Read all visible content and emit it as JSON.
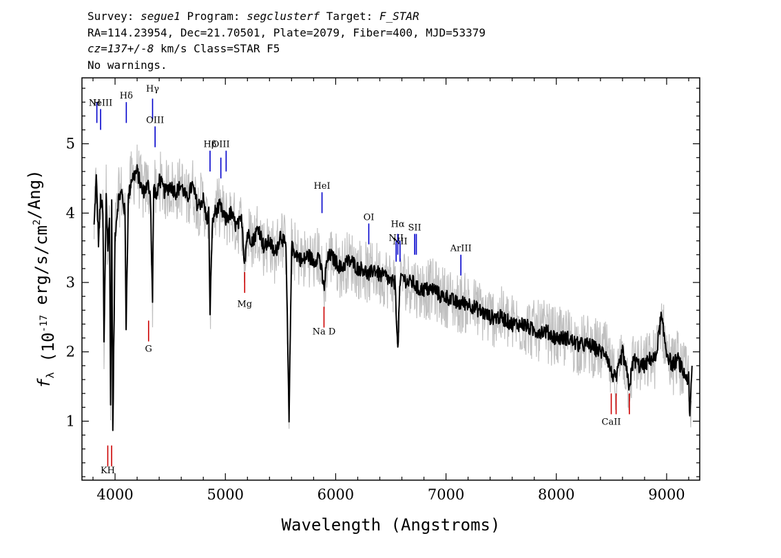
{
  "header": {
    "survey_label": "Survey: ",
    "survey": "segue1",
    "program_label": " Program: ",
    "program": "segclusterf",
    "target_label": " Target: ",
    "target": "F_STAR",
    "line2": "RA=114.23954, Dec=21.70501, Plate=2079, Fiber=400, MJD=53379",
    "cz": "cz=137+/-8",
    "cz_units": " km/s Class=STAR F5",
    "line4": "No warnings."
  },
  "chart_data": {
    "type": "line",
    "xlabel": "Wavelength (Angstroms)",
    "ylabel": "f_λ (10^-17 erg/s/cm^2/Ang)",
    "xlim": [
      3700,
      9300
    ],
    "ylim": [
      0.15,
      5.95
    ],
    "xticks": [
      4000,
      5000,
      6000,
      7000,
      8000,
      9000
    ],
    "yticks": [
      1,
      2,
      3,
      4,
      5
    ],
    "colors": {
      "flux": "#000000",
      "noise": "#c0c0c0",
      "emission": "#0000cc",
      "absorption": "#cc0000"
    },
    "series": [
      {
        "role": "flux",
        "x": [
          3810,
          3830,
          3850,
          3870,
          3890,
          3900,
          3920,
          3935,
          3950,
          3960,
          3970,
          3980,
          4000,
          4030,
          4060,
          4090,
          4100,
          4120,
          4150,
          4200,
          4250,
          4300,
          4320,
          4340,
          4350,
          4380,
          4400,
          4450,
          4500,
          4550,
          4600,
          4650,
          4700,
          4750,
          4800,
          4830,
          4850,
          4861,
          4880,
          4900,
          4950,
          5000,
          5050,
          5100,
          5150,
          5172,
          5200,
          5250,
          5300,
          5350,
          5400,
          5450,
          5500,
          5550,
          5577,
          5600,
          5650,
          5700,
          5750,
          5800,
          5850,
          5893,
          5920,
          5950,
          6000,
          6050,
          6100,
          6150,
          6200,
          6250,
          6300,
          6350,
          6400,
          6450,
          6500,
          6540,
          6563,
          6580,
          6600,
          6650,
          6700,
          6750,
          6800,
          6850,
          6900,
          6950,
          7000,
          7100,
          7200,
          7300,
          7400,
          7500,
          7600,
          7700,
          7800,
          7900,
          8000,
          8100,
          8200,
          8300,
          8400,
          8450,
          8498,
          8542,
          8600,
          8662,
          8700,
          8750,
          8800,
          8850,
          8900,
          8950,
          9000,
          9050,
          9100,
          9150,
          9200,
          9210,
          9230
        ],
        "y": [
          3.8,
          4.5,
          3.6,
          4.2,
          4.0,
          2.1,
          4.3,
          3.5,
          3.9,
          1.2,
          4.1,
          0.8,
          3.7,
          4.2,
          4.3,
          4.0,
          2.4,
          4.2,
          4.5,
          4.6,
          4.3,
          4.4,
          4.3,
          2.7,
          4.4,
          4.2,
          4.5,
          4.3,
          4.4,
          4.3,
          4.4,
          4.2,
          4.4,
          4.1,
          4.2,
          3.9,
          4.0,
          2.5,
          3.8,
          4.0,
          4.1,
          3.9,
          4.0,
          3.8,
          3.9,
          3.3,
          3.7,
          3.6,
          3.8,
          3.5,
          3.6,
          3.4,
          3.7,
          3.5,
          1.0,
          3.5,
          3.4,
          3.3,
          3.4,
          3.3,
          3.4,
          2.9,
          3.3,
          3.4,
          3.3,
          3.2,
          3.3,
          3.3,
          3.2,
          3.2,
          3.1,
          3.2,
          3.1,
          3.1,
          3.0,
          3.0,
          2.0,
          2.9,
          3.1,
          3.0,
          3.0,
          2.9,
          2.9,
          2.9,
          2.9,
          2.8,
          2.8,
          2.7,
          2.7,
          2.6,
          2.5,
          2.5,
          2.4,
          2.4,
          2.3,
          2.3,
          2.2,
          2.2,
          2.1,
          2.1,
          2.0,
          2.0,
          1.7,
          1.6,
          2.0,
          1.5,
          1.9,
          1.8,
          1.8,
          1.9,
          1.9,
          2.5,
          2.0,
          1.8,
          1.9,
          1.7,
          1.6,
          1.0,
          1.8
        ]
      }
    ],
    "lines": [
      {
        "label": "H",
        "wave": 3835,
        "kind": "emission",
        "y0": 5.3,
        "y1": 5.6,
        "ly": 5.55
      },
      {
        "label": "NeIII",
        "wave": 3869,
        "kind": "emission",
        "y0": 5.2,
        "y1": 5.5,
        "ly": 5.55
      },
      {
        "label": "Hδ",
        "wave": 4102,
        "kind": "emission",
        "y0": 5.3,
        "y1": 5.6,
        "ly": 5.65
      },
      {
        "label": "Hγ",
        "wave": 4340,
        "kind": "emission",
        "y0": 5.35,
        "y1": 5.65,
        "ly": 5.75
      },
      {
        "label": "OIII",
        "wave": 4363,
        "kind": "emission",
        "y0": 4.95,
        "y1": 5.25,
        "ly": 5.3
      },
      {
        "label": "Hβ",
        "wave": 4861,
        "kind": "emission",
        "y0": 4.6,
        "y1": 4.9,
        "ly": 4.95
      },
      {
        "label": "OIII",
        "wave": 4959,
        "kind": "emission",
        "y0": 4.5,
        "y1": 4.8,
        "ly": 4.95
      },
      {
        "label": "",
        "wave": 5007,
        "kind": "emission",
        "y0": 4.6,
        "y1": 4.9,
        "ly": 0
      },
      {
        "label": "HeI",
        "wave": 5876,
        "kind": "emission",
        "y0": 4.0,
        "y1": 4.3,
        "ly": 4.35
      },
      {
        "label": "OI",
        "wave": 6300,
        "kind": "emission",
        "y0": 3.55,
        "y1": 3.85,
        "ly": 3.9
      },
      {
        "label": "NII",
        "wave": 6548,
        "kind": "emission",
        "y0": 3.3,
        "y1": 3.6,
        "ly": 3.6
      },
      {
        "label": "Hα",
        "wave": 6563,
        "kind": "emission",
        "y0": 3.4,
        "y1": 3.7,
        "ly": 3.8
      },
      {
        "label": "NII",
        "wave": 6583,
        "kind": "emission",
        "y0": 3.3,
        "y1": 3.6,
        "ly": 3.55
      },
      {
        "label": "SII",
        "wave": 6716,
        "kind": "emission",
        "y0": 3.4,
        "y1": 3.7,
        "ly": 3.75
      },
      {
        "label": "",
        "wave": 6731,
        "kind": "emission",
        "y0": 3.4,
        "y1": 3.7,
        "ly": 0
      },
      {
        "label": "ArIII",
        "wave": 7135,
        "kind": "emission",
        "y0": 3.1,
        "y1": 3.4,
        "ly": 3.45
      },
      {
        "label": "KH",
        "wave": 3934,
        "kind": "absorption",
        "y0": 0.35,
        "y1": 0.65,
        "ly": 0.25
      },
      {
        "label": "",
        "wave": 3969,
        "kind": "absorption",
        "y0": 0.35,
        "y1": 0.65,
        "ly": 0
      },
      {
        "label": "G",
        "wave": 4304,
        "kind": "absorption",
        "y0": 2.15,
        "y1": 2.45,
        "ly": 2.0
      },
      {
        "label": "Mg",
        "wave": 5175,
        "kind": "absorption",
        "y0": 2.85,
        "y1": 3.15,
        "ly": 2.65
      },
      {
        "label": "Na D",
        "wave": 5894,
        "kind": "absorption",
        "y0": 2.35,
        "y1": 2.65,
        "ly": 2.25
      },
      {
        "label": "CaII",
        "wave": 8498,
        "kind": "absorption",
        "y0": 1.1,
        "y1": 1.4,
        "ly": 0.95
      },
      {
        "label": "",
        "wave": 8542,
        "kind": "absorption",
        "y0": 1.1,
        "y1": 1.4,
        "ly": 0
      },
      {
        "label": "",
        "wave": 8662,
        "kind": "absorption",
        "y0": 1.1,
        "y1": 1.4,
        "ly": 0
      }
    ]
  }
}
